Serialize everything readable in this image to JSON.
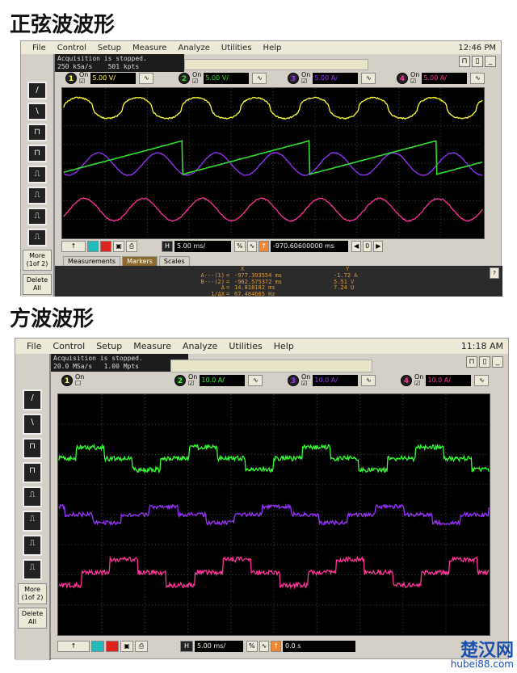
{
  "sine": {
    "title": "正弦波波形",
    "menu": [
      "File",
      "Control",
      "Setup",
      "Measure",
      "Analyze",
      "Utilities",
      "Help"
    ],
    "clock": "12:46 PM",
    "status_line1": "Acquisition is stopped.",
    "status_line2": "250 kSa/s    501 kpts",
    "channels": [
      {
        "num": "1",
        "on": "On",
        "value": "5.00 V/",
        "color": "#ffff33"
      },
      {
        "num": "2",
        "on": "On",
        "value": "5.00 V/",
        "color": "#33dd33"
      },
      {
        "num": "3",
        "on": "On",
        "value": "5.00 A/",
        "color": "#9933ff"
      },
      {
        "num": "4",
        "on": "On",
        "value": "5.00 A/",
        "color": "#ff3399"
      }
    ],
    "left_buttons": {
      "more": "More",
      "more_page": "(1of 2)",
      "delete": "Delete",
      "delete_all": "All"
    },
    "timebase": "5.00 ms/",
    "H": "H",
    "delay": "-970.60600000 ms",
    "nav_center": "0",
    "tabs": [
      "Measurements",
      "Markers",
      "Scales"
    ],
    "active_tab": "Markers",
    "markers": {
      "hdr_x": "X",
      "hdr_y": "Y",
      "rows": [
        {
          "label": "A---(1)",
          "x": "-977.393554 ms",
          "y": "-1.72 A"
        },
        {
          "label": "B---(2)",
          "x": "-962.575372 ms",
          "y": "5.51 V"
        },
        {
          "label": "Δ",
          "x": "14.818182 ms",
          "y": "7.24 U"
        },
        {
          "label": "1/ΔX",
          "x": "67.484665 Hz",
          "y": ""
        }
      ]
    },
    "help": "?"
  },
  "square": {
    "title": "方波波形",
    "menu": [
      "File",
      "Control",
      "Setup",
      "Measure",
      "Analyze",
      "Utilities",
      "Help"
    ],
    "clock": "11:18 AM",
    "status_line1": "Acquisition is stopped.",
    "status_line2": "20.0 MSa/s   1.00 Mpts",
    "channels": [
      {
        "num": "1",
        "on": "On",
        "value": "",
        "color": "#ffff33"
      },
      {
        "num": "2",
        "on": "On",
        "value": "10.0 A/",
        "color": "#33ff33"
      },
      {
        "num": "3",
        "on": "On",
        "value": "10.0 A/",
        "color": "#9933ff"
      },
      {
        "num": "4",
        "on": "On",
        "value": "10.0 A/",
        "color": "#ff3399"
      }
    ],
    "left_buttons": {
      "more": "More",
      "more_page": "(1of 2)",
      "delete": "Delete",
      "delete_all": "All"
    },
    "timebase": "5.00 ms/",
    "H": "H",
    "delay": "0.0 s"
  },
  "watermark": {
    "name": "楚汉网",
    "url": "hubei88.com"
  }
}
